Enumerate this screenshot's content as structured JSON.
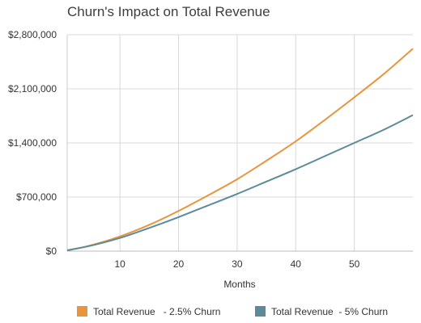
{
  "chart_data": {
    "type": "line",
    "title": "Churn's Impact on Total Revenue",
    "xlabel": "Months",
    "ylabel": "",
    "xlim": [
      1,
      60
    ],
    "ylim": [
      0,
      2800000
    ],
    "x_ticks": [
      10,
      20,
      30,
      40,
      50
    ],
    "x_tick_labels": [
      "10",
      "20",
      "30",
      "40",
      "50"
    ],
    "y_ticks": [
      0,
      700000,
      1400000,
      2100000,
      2800000
    ],
    "y_tick_labels": [
      "$0",
      "$700,000",
      "$1,400,000",
      "$2,100,000",
      "$2,800,000"
    ],
    "grid": true,
    "legend_position": "bottom",
    "series": [
      {
        "name": "Total Revenue   - 2.5% Churn",
        "color": "#e8963e",
        "x": [
          1,
          5,
          10,
          15,
          20,
          25,
          30,
          35,
          40,
          45,
          50,
          55,
          60
        ],
        "y": [
          10000,
          75000,
          190000,
          340000,
          520000,
          720000,
          930000,
          1170000,
          1420000,
          1700000,
          1990000,
          2290000,
          2620000
        ]
      },
      {
        "name": "Total Revenue  - 5% Churn",
        "color": "#5b8b9a",
        "x": [
          1,
          5,
          10,
          15,
          20,
          25,
          30,
          35,
          40,
          45,
          50,
          55,
          60
        ],
        "y": [
          10000,
          70000,
          170000,
          300000,
          440000,
          590000,
          740000,
          900000,
          1060000,
          1230000,
          1400000,
          1570000,
          1760000
        ]
      }
    ]
  }
}
